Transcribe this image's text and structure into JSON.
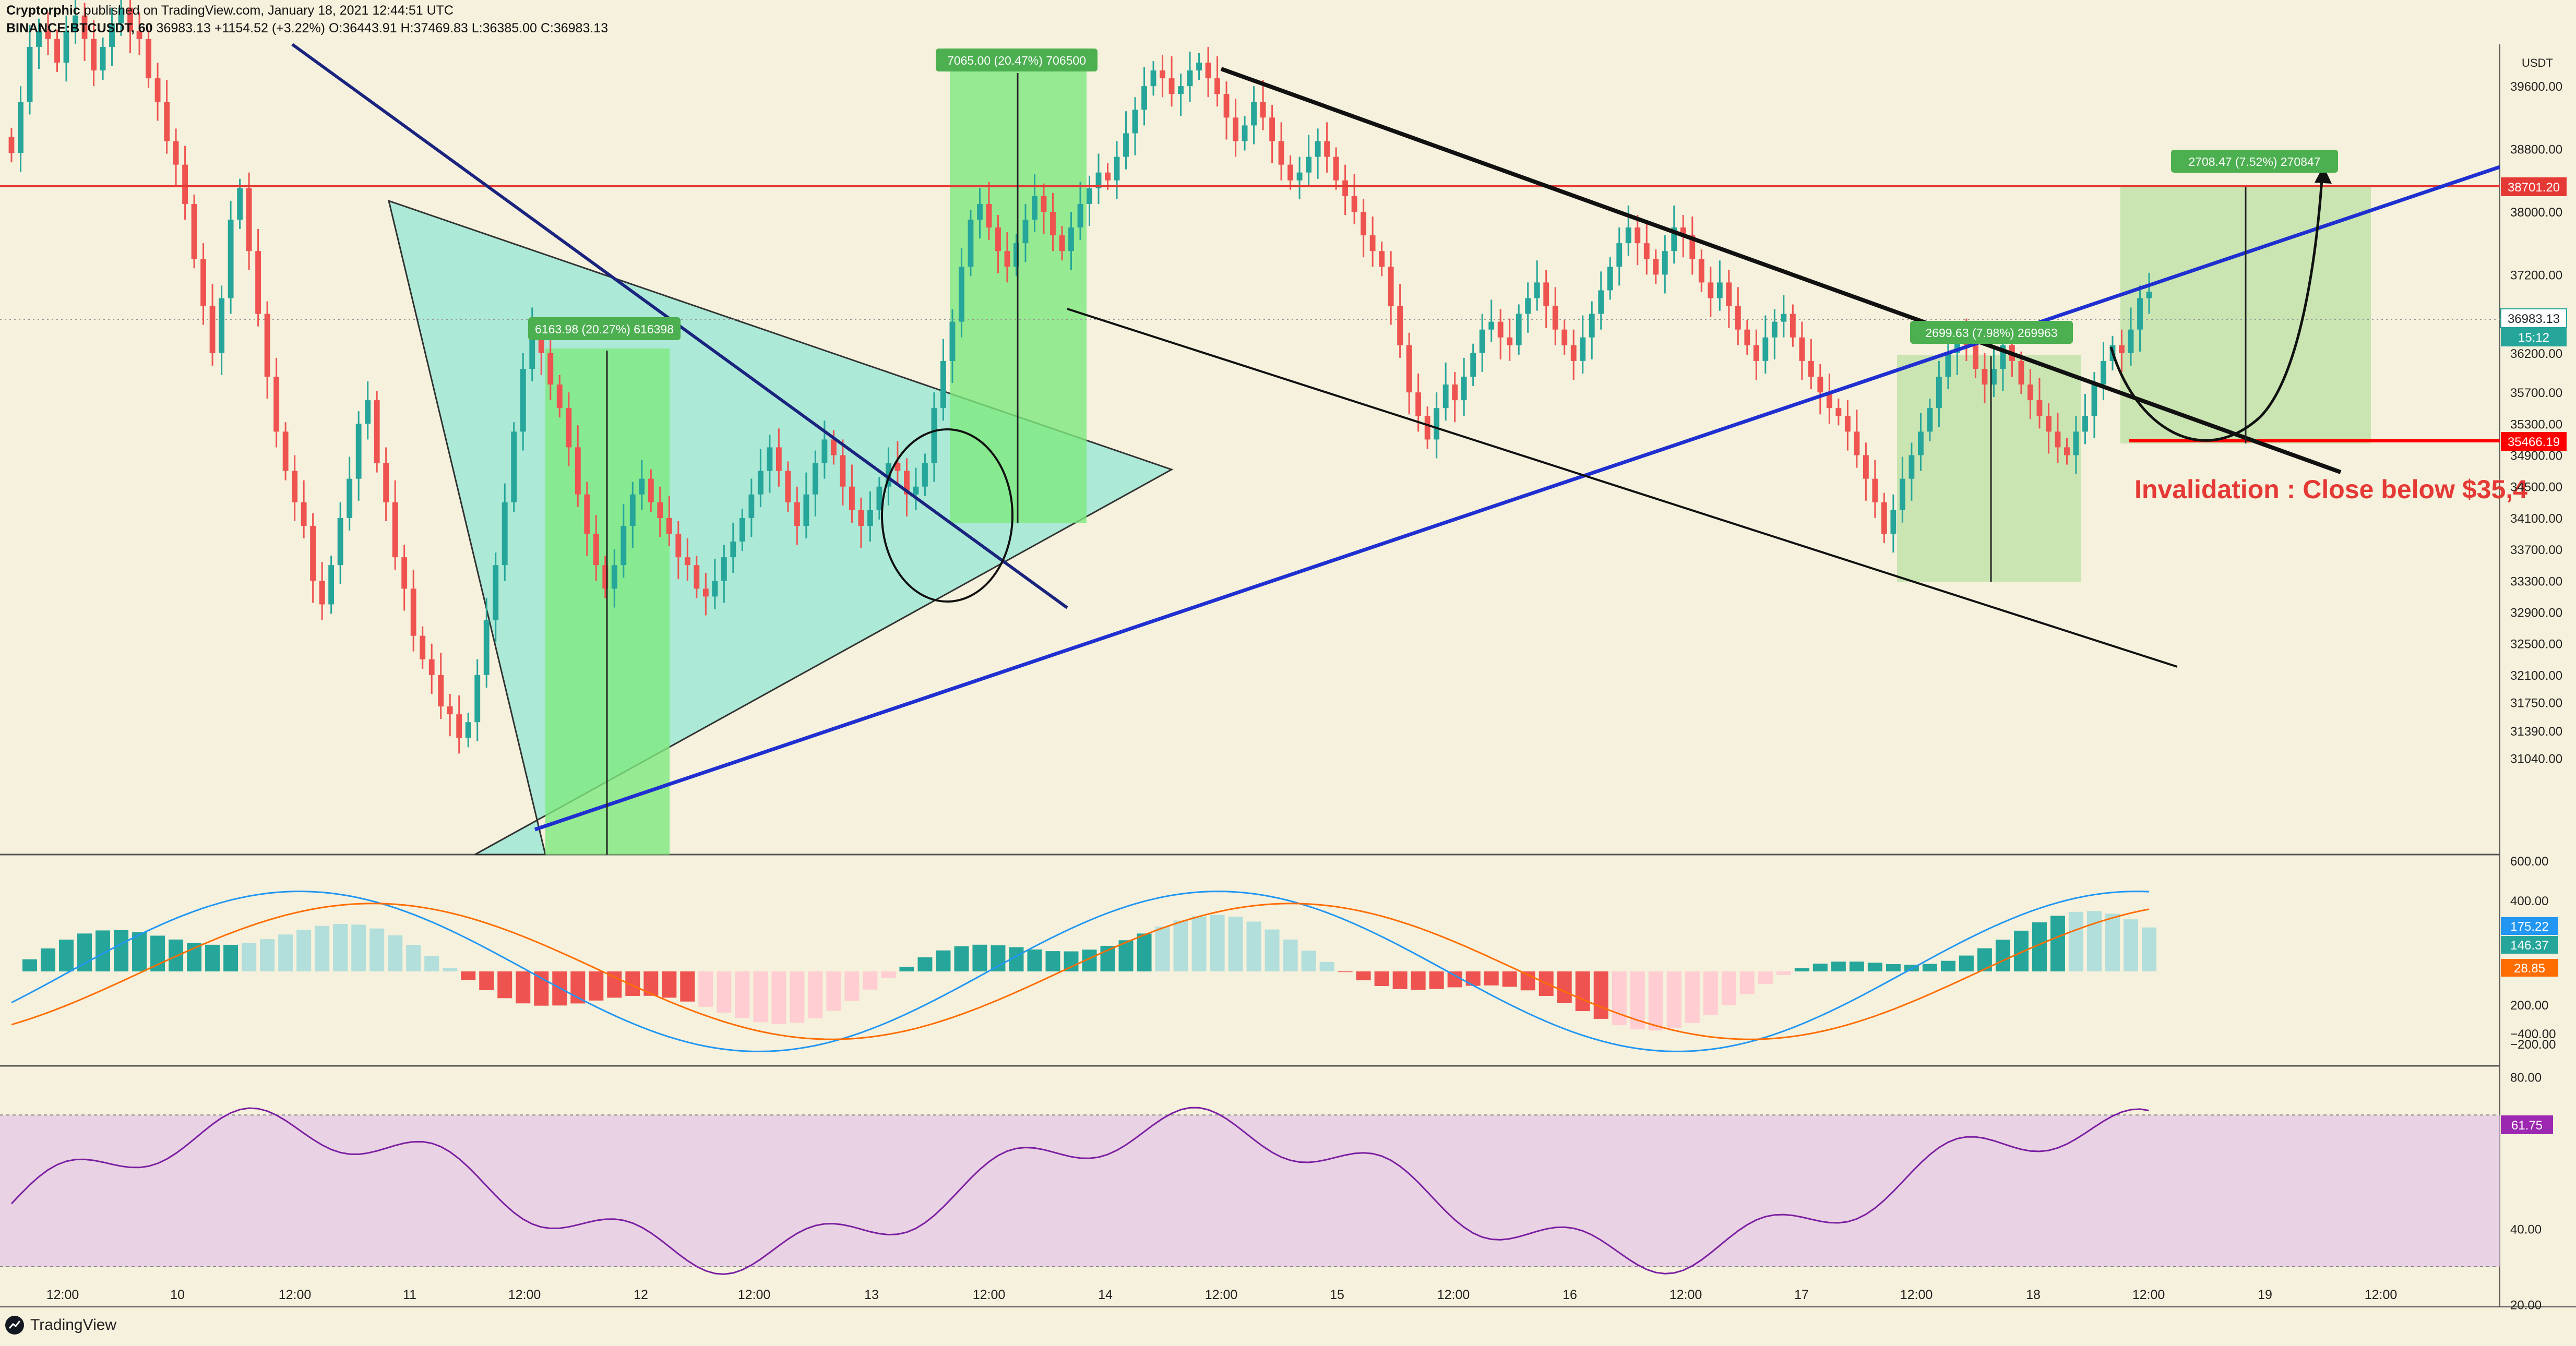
{
  "header": {
    "publisher": "Cryptorphic",
    "published_line": "published on TradingView.com, January 18, 2021 12:44:51 UTC",
    "symbol": "BINANCE:BTCUSDT, 60",
    "last": "36983.13",
    "change": "+1154.52 (+3.22%)",
    "ohlc": "O:36443.91 H:37469.83 L:36385.00 C:36983.13"
  },
  "footer": {
    "logo_text": "TradingView"
  },
  "currency": "USDT",
  "colors": {
    "background": "#f5f1dc",
    "up": "#26a69a",
    "down": "#ef5350",
    "macd_line": "#2196f3",
    "signal_line": "#ff6d00",
    "rsi": "#7b1fa2",
    "resistance": "#e53935",
    "trendline": "#1f2fd0"
  },
  "chart_data": {
    "type": "candlestick",
    "timeframe": "60",
    "price_axis_ticks": [
      39600,
      38800,
      38000,
      37200,
      36200,
      35700,
      35300,
      34900,
      34500,
      34100,
      33700,
      33300,
      32900,
      32500,
      32100,
      31750,
      31390,
      31040
    ],
    "time_axis_ticks": [
      "12:00",
      "10",
      "12:00",
      "11",
      "12:00",
      "12",
      "12:00",
      "13",
      "12:00",
      "14",
      "12:00",
      "15",
      "12:00",
      "16",
      "12:00",
      "17",
      "12:00",
      "18",
      "12:00",
      "19",
      "12:00"
    ],
    "price_labels": [
      {
        "text": "38701.20",
        "kind": "resistance"
      },
      {
        "text": "36983.13",
        "kind": "last"
      },
      {
        "text": "15:12",
        "kind": "countdown"
      },
      {
        "text": "35466.19",
        "kind": "invalidation"
      }
    ],
    "measurements": [
      {
        "text": "6163.98 (20.27%) 616398"
      },
      {
        "text": "7065.00 (20.47%) 706500"
      },
      {
        "text": "2699.63 (7.98%) 269963"
      },
      {
        "text": "2708.47 (7.52%) 270847"
      }
    ],
    "annotation": "Invalidation : Close below $35,4",
    "closes": [
      38750,
      39400,
      40100,
      40300,
      40200,
      39900,
      40300,
      40500,
      40200,
      39800,
      40100,
      40400,
      40600,
      40300,
      40200,
      39700,
      39400,
      38900,
      38600,
      38100,
      37400,
      36800,
      36200,
      36900,
      37900,
      38300,
      37500,
      36700,
      35900,
      35200,
      34700,
      34300,
      34000,
      33300,
      33000,
      33500,
      34100,
      34600,
      35300,
      35600,
      34800,
      34300,
      33600,
      33200,
      32600,
      32300,
      32100,
      31700,
      31600,
      31300,
      31500,
      32100,
      32800,
      33500,
      34300,
      35200,
      36000,
      36500,
      36200,
      35800,
      35500,
      35000,
      34400,
      33900,
      33500,
      33200,
      33500,
      34000,
      34400,
      34600,
      34300,
      34100,
      33900,
      33600,
      33500,
      33200,
      33100,
      33300,
      33600,
      33800,
      34100,
      34400,
      34700,
      35000,
      34700,
      34300,
      34000,
      34400,
      34800,
      35100,
      34900,
      34500,
      34200,
      34000,
      34200,
      34500,
      34800,
      34700,
      34400,
      34500,
      34800,
      35500,
      36100,
      36600,
      37300,
      37900,
      38100,
      37800,
      37500,
      37300,
      37600,
      37900,
      38200,
      38000,
      37700,
      37500,
      37800,
      38100,
      38300,
      38500,
      38400,
      38700,
      39000,
      39300,
      39600,
      39800,
      39700,
      39500,
      39600,
      39800,
      39900,
      39700,
      39500,
      39200,
      38900,
      39100,
      39400,
      39200,
      38900,
      38600,
      38400,
      38500,
      38700,
      38900,
      38700,
      38400,
      38200,
      38000,
      37700,
      37500,
      37300,
      36800,
      36300,
      35700,
      35400,
      35100,
      35500,
      35800,
      35600,
      35900,
      36200,
      36500,
      36600,
      36400,
      36300,
      36700,
      36900,
      37100,
      36800,
      36500,
      36300,
      36100,
      36400,
      36700,
      37000,
      37300,
      37600,
      37800,
      37600,
      37400,
      37200,
      37500,
      37800,
      37700,
      37400,
      37100,
      36900,
      37100,
      36800,
      36500,
      36300,
      36100,
      36400,
      36600,
      36700,
      36400,
      36100,
      35900,
      35700,
      35500,
      35400,
      35200,
      34900,
      34600,
      34300,
      33900,
      34200,
      34600,
      34900,
      35200,
      35500,
      35900,
      36200,
      36400,
      36300,
      36000,
      35800,
      36000,
      36300,
      36100,
      35800,
      35600,
      35400,
      35200,
      35000,
      34900,
      35200,
      35400,
      35800,
      36100,
      36300,
      36200,
      36500,
      36900,
      36983
    ],
    "macd": {
      "histogram_range": [
        -400,
        600
      ],
      "values_shown": [
        "175.22",
        "146.37",
        "28.85"
      ],
      "axis_ticks": [
        "600.00",
        "400.00",
        "200.00",
        "−200.00",
        "−400.00"
      ]
    },
    "rsi": {
      "value_shown": "61.75",
      "axis_ticks": [
        "80.00",
        "40.00",
        "20.00"
      ],
      "band": [
        30,
        70
      ]
    }
  }
}
